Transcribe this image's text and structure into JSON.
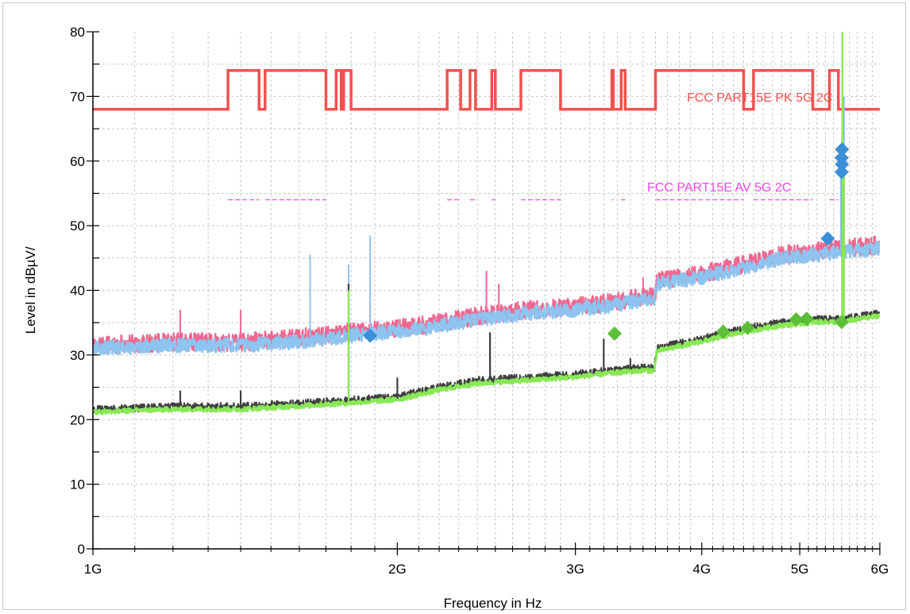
{
  "chart_data": {
    "type": "line",
    "title": "",
    "xlabel": "Frequency in Hz",
    "ylabel": "Level in dBµV/",
    "x_scale": "log",
    "xlim": [
      1000000000,
      6000000000
    ],
    "ylim": [
      0,
      80
    ],
    "grid": true,
    "x_ticks": [
      {
        "value": 1000000000,
        "label": "1G"
      },
      {
        "value": 2000000000,
        "label": "2G"
      },
      {
        "value": 3000000000,
        "label": "3G"
      },
      {
        "value": 4000000000,
        "label": "4G"
      },
      {
        "value": 5000000000,
        "label": "5G"
      },
      {
        "value": 6000000000,
        "label": "6G"
      }
    ],
    "y_ticks": [
      {
        "value": 0,
        "label": "0"
      },
      {
        "value": 10,
        "label": "10"
      },
      {
        "value": 20,
        "label": "20"
      },
      {
        "value": 30,
        "label": "30"
      },
      {
        "value": 40,
        "label": "40"
      },
      {
        "value": 50,
        "label": "50"
      },
      {
        "value": 60,
        "label": "60"
      },
      {
        "value": 70,
        "label": "70"
      },
      {
        "value": 80,
        "label": "80"
      }
    ],
    "limit_lines": [
      {
        "name": "FCC PART15E PK 5G 2C",
        "color": "#f0524f",
        "points": [
          [
            1000000000,
            68
          ],
          [
            1360000000,
            68
          ],
          [
            1360000000,
            74
          ],
          [
            1460000000,
            74
          ],
          [
            1460000000,
            68
          ],
          [
            1480000000,
            68
          ],
          [
            1480000000,
            74
          ],
          [
            1700000000,
            74
          ],
          [
            1700000000,
            68
          ],
          [
            1740000000,
            68
          ],
          [
            1740000000,
            74
          ],
          [
            1760000000,
            74
          ],
          [
            1760000000,
            68
          ],
          [
            1770000000,
            68
          ],
          [
            1770000000,
            74
          ],
          [
            1800000000,
            74
          ],
          [
            1800000000,
            68
          ],
          [
            2240000000,
            68
          ],
          [
            2240000000,
            74
          ],
          [
            2310000000,
            74
          ],
          [
            2310000000,
            68
          ],
          [
            2360000000,
            68
          ],
          [
            2360000000,
            74
          ],
          [
            2390000000,
            74
          ],
          [
            2390000000,
            68
          ],
          [
            2480000000,
            68
          ],
          [
            2480000000,
            74
          ],
          [
            2500000000,
            74
          ],
          [
            2500000000,
            68
          ],
          [
            2650000000,
            68
          ],
          [
            2650000000,
            74
          ],
          [
            2900000000,
            74
          ],
          [
            2900000000,
            68
          ],
          [
            3260000000,
            68
          ],
          [
            3260000000,
            74
          ],
          [
            3270000000,
            74
          ],
          [
            3270000000,
            68
          ],
          [
            3330000000,
            68
          ],
          [
            3330000000,
            74
          ],
          [
            3360000000,
            74
          ],
          [
            3360000000,
            68
          ],
          [
            3600000000,
            68
          ],
          [
            3600000000,
            74
          ],
          [
            4400000000,
            74
          ],
          [
            4400000000,
            68
          ],
          [
            4500000000,
            68
          ],
          [
            4500000000,
            74
          ],
          [
            5150000000,
            74
          ],
          [
            5150000000,
            68
          ],
          [
            5350000000,
            68
          ],
          [
            5350000000,
            74
          ],
          [
            5460000000,
            74
          ],
          [
            5460000000,
            68
          ],
          [
            5850000000,
            68
          ],
          [
            5850000000,
            68
          ],
          [
            6000000000,
            68
          ]
        ]
      },
      {
        "name": "FCC PART15E AV 5G 2C",
        "color": "#ee44ee",
        "points": [
          [
            1360000000,
            54
          ],
          [
            1460000000,
            54
          ],
          [
            1480000000,
            54
          ],
          [
            1700000000,
            54
          ],
          [
            2240000000,
            54
          ],
          [
            2310000000,
            54
          ],
          [
            2360000000,
            54
          ],
          [
            2390000000,
            54
          ],
          [
            2480000000,
            54
          ],
          [
            2500000000,
            54
          ],
          [
            2650000000,
            54
          ],
          [
            2900000000,
            54
          ],
          [
            3260000000,
            54
          ],
          [
            3270000000,
            54
          ],
          [
            3330000000,
            54
          ],
          [
            3360000000,
            54
          ],
          [
            3600000000,
            54
          ],
          [
            4400000000,
            54
          ],
          [
            4500000000,
            54
          ],
          [
            5150000000,
            54
          ],
          [
            5350000000,
            54
          ],
          [
            5460000000,
            54
          ]
        ]
      }
    ],
    "series": [
      {
        "name": "",
        "kind": "peak-trace",
        "color": "#f0688f",
        "width": 2.4,
        "noise": 1.4,
        "points": [
          [
            1000000000,
            31.5
          ],
          [
            1200000000,
            32
          ],
          [
            1400000000,
            32
          ],
          [
            1600000000,
            32.7
          ],
          [
            1800000000,
            33.5
          ],
          [
            1950000000,
            34
          ],
          [
            2100000000,
            34.5
          ],
          [
            2400000000,
            36
          ],
          [
            2700000000,
            37
          ],
          [
            3000000000,
            37.5
          ],
          [
            3200000000,
            38
          ],
          [
            3500000000,
            39
          ],
          [
            3590000000,
            39
          ],
          [
            3610000000,
            41.5
          ],
          [
            4000000000,
            42.5
          ],
          [
            4400000000,
            44
          ],
          [
            4800000000,
            45.5
          ],
          [
            5200000000,
            46
          ],
          [
            5500000000,
            46.5
          ],
          [
            6000000000,
            47
          ]
        ],
        "spikes": [
          [
            1220000000,
            37
          ],
          [
            1400000000,
            37
          ],
          [
            1790000000,
            42
          ],
          [
            1880000000,
            38
          ],
          [
            2450000000,
            43
          ],
          [
            2520000000,
            41
          ],
          [
            3500000000,
            42
          ]
        ]
      },
      {
        "name": "",
        "kind": "peak-trace",
        "color": "#8ec4f0",
        "width": 2.6,
        "noise": 1.1,
        "points": [
          [
            1000000000,
            31
          ],
          [
            1200000000,
            31.5
          ],
          [
            1400000000,
            31.5
          ],
          [
            1600000000,
            32
          ],
          [
            1800000000,
            33
          ],
          [
            1950000000,
            33.5
          ],
          [
            2100000000,
            34
          ],
          [
            2400000000,
            35.5
          ],
          [
            2700000000,
            36.5
          ],
          [
            3000000000,
            37
          ],
          [
            3200000000,
            37.5
          ],
          [
            3500000000,
            38.5
          ],
          [
            3590000000,
            38.5
          ],
          [
            3610000000,
            41
          ],
          [
            4000000000,
            42
          ],
          [
            4400000000,
            43.5
          ],
          [
            4800000000,
            45
          ],
          [
            5200000000,
            45.5
          ],
          [
            5500000000,
            46
          ],
          [
            6000000000,
            46.5
          ]
        ],
        "spikes": [
          [
            1640000000,
            45.5
          ],
          [
            1790000000,
            44
          ],
          [
            1880000000,
            48.5
          ],
          [
            5510000000,
            80
          ],
          [
            5530000000,
            70
          ],
          [
            5490000000,
            60
          ]
        ]
      },
      {
        "name": "",
        "kind": "average-trace",
        "color": "#404040",
        "width": 2.0,
        "noise": 0.6,
        "points": [
          [
            1000000000,
            21.5
          ],
          [
            1200000000,
            22
          ],
          [
            1400000000,
            22
          ],
          [
            1600000000,
            22.5
          ],
          [
            1800000000,
            23
          ],
          [
            2000000000,
            23.5
          ],
          [
            2200000000,
            25
          ],
          [
            2400000000,
            26
          ],
          [
            2700000000,
            26.5
          ],
          [
            3000000000,
            27
          ],
          [
            3200000000,
            27.5
          ],
          [
            3500000000,
            28
          ],
          [
            3590000000,
            28
          ],
          [
            3610000000,
            31
          ],
          [
            4000000000,
            32.5
          ],
          [
            4400000000,
            34
          ],
          [
            4800000000,
            35
          ],
          [
            5200000000,
            35.5
          ],
          [
            5500000000,
            35.5
          ],
          [
            6000000000,
            36.5
          ]
        ],
        "spikes": [
          [
            1220000000,
            24.5
          ],
          [
            1400000000,
            24.5
          ],
          [
            1790000000,
            41
          ],
          [
            2000000000,
            26.5
          ],
          [
            2470000000,
            33.5
          ],
          [
            3200000000,
            32.5
          ],
          [
            3400000000,
            29.5
          ],
          [
            5510000000,
            58
          ]
        ]
      },
      {
        "name": "",
        "kind": "average-trace",
        "color": "#88e855",
        "width": 2.6,
        "noise": 0.4,
        "points": [
          [
            1000000000,
            21.2
          ],
          [
            1200000000,
            21.6
          ],
          [
            1400000000,
            21.6
          ],
          [
            1600000000,
            22.1
          ],
          [
            1800000000,
            22.6
          ],
          [
            2000000000,
            23.1
          ],
          [
            2200000000,
            24.6
          ],
          [
            2400000000,
            25.6
          ],
          [
            2700000000,
            26.1
          ],
          [
            3000000000,
            26.6
          ],
          [
            3200000000,
            27.1
          ],
          [
            3500000000,
            27.6
          ],
          [
            3590000000,
            27.6
          ],
          [
            3610000000,
            30.6
          ],
          [
            4000000000,
            32.1
          ],
          [
            4400000000,
            33.6
          ],
          [
            4800000000,
            34.6
          ],
          [
            5200000000,
            35.1
          ],
          [
            5500000000,
            35.1
          ],
          [
            6000000000,
            36.1
          ]
        ],
        "spikes": [
          [
            1790000000,
            40
          ],
          [
            5510000000,
            80
          ],
          [
            5530000000,
            60
          ]
        ]
      }
    ],
    "markers": [
      {
        "series": "peak",
        "color": "#3a8fd8",
        "points": [
          [
            1880000000,
            33
          ],
          [
            5330000000,
            48
          ],
          [
            5500000000,
            58.3
          ],
          [
            5505000000,
            59.5
          ],
          [
            5500000000,
            60.5
          ],
          [
            5505000000,
            61.8
          ]
        ]
      },
      {
        "series": "average",
        "color": "#5cbf3a",
        "points": [
          [
            3280000000,
            33.3
          ],
          [
            4200000000,
            33.6
          ],
          [
            4440000000,
            34.2
          ],
          [
            4960000000,
            35.5
          ],
          [
            5080000000,
            35.6
          ],
          [
            5500000000,
            35.1
          ]
        ]
      }
    ]
  }
}
